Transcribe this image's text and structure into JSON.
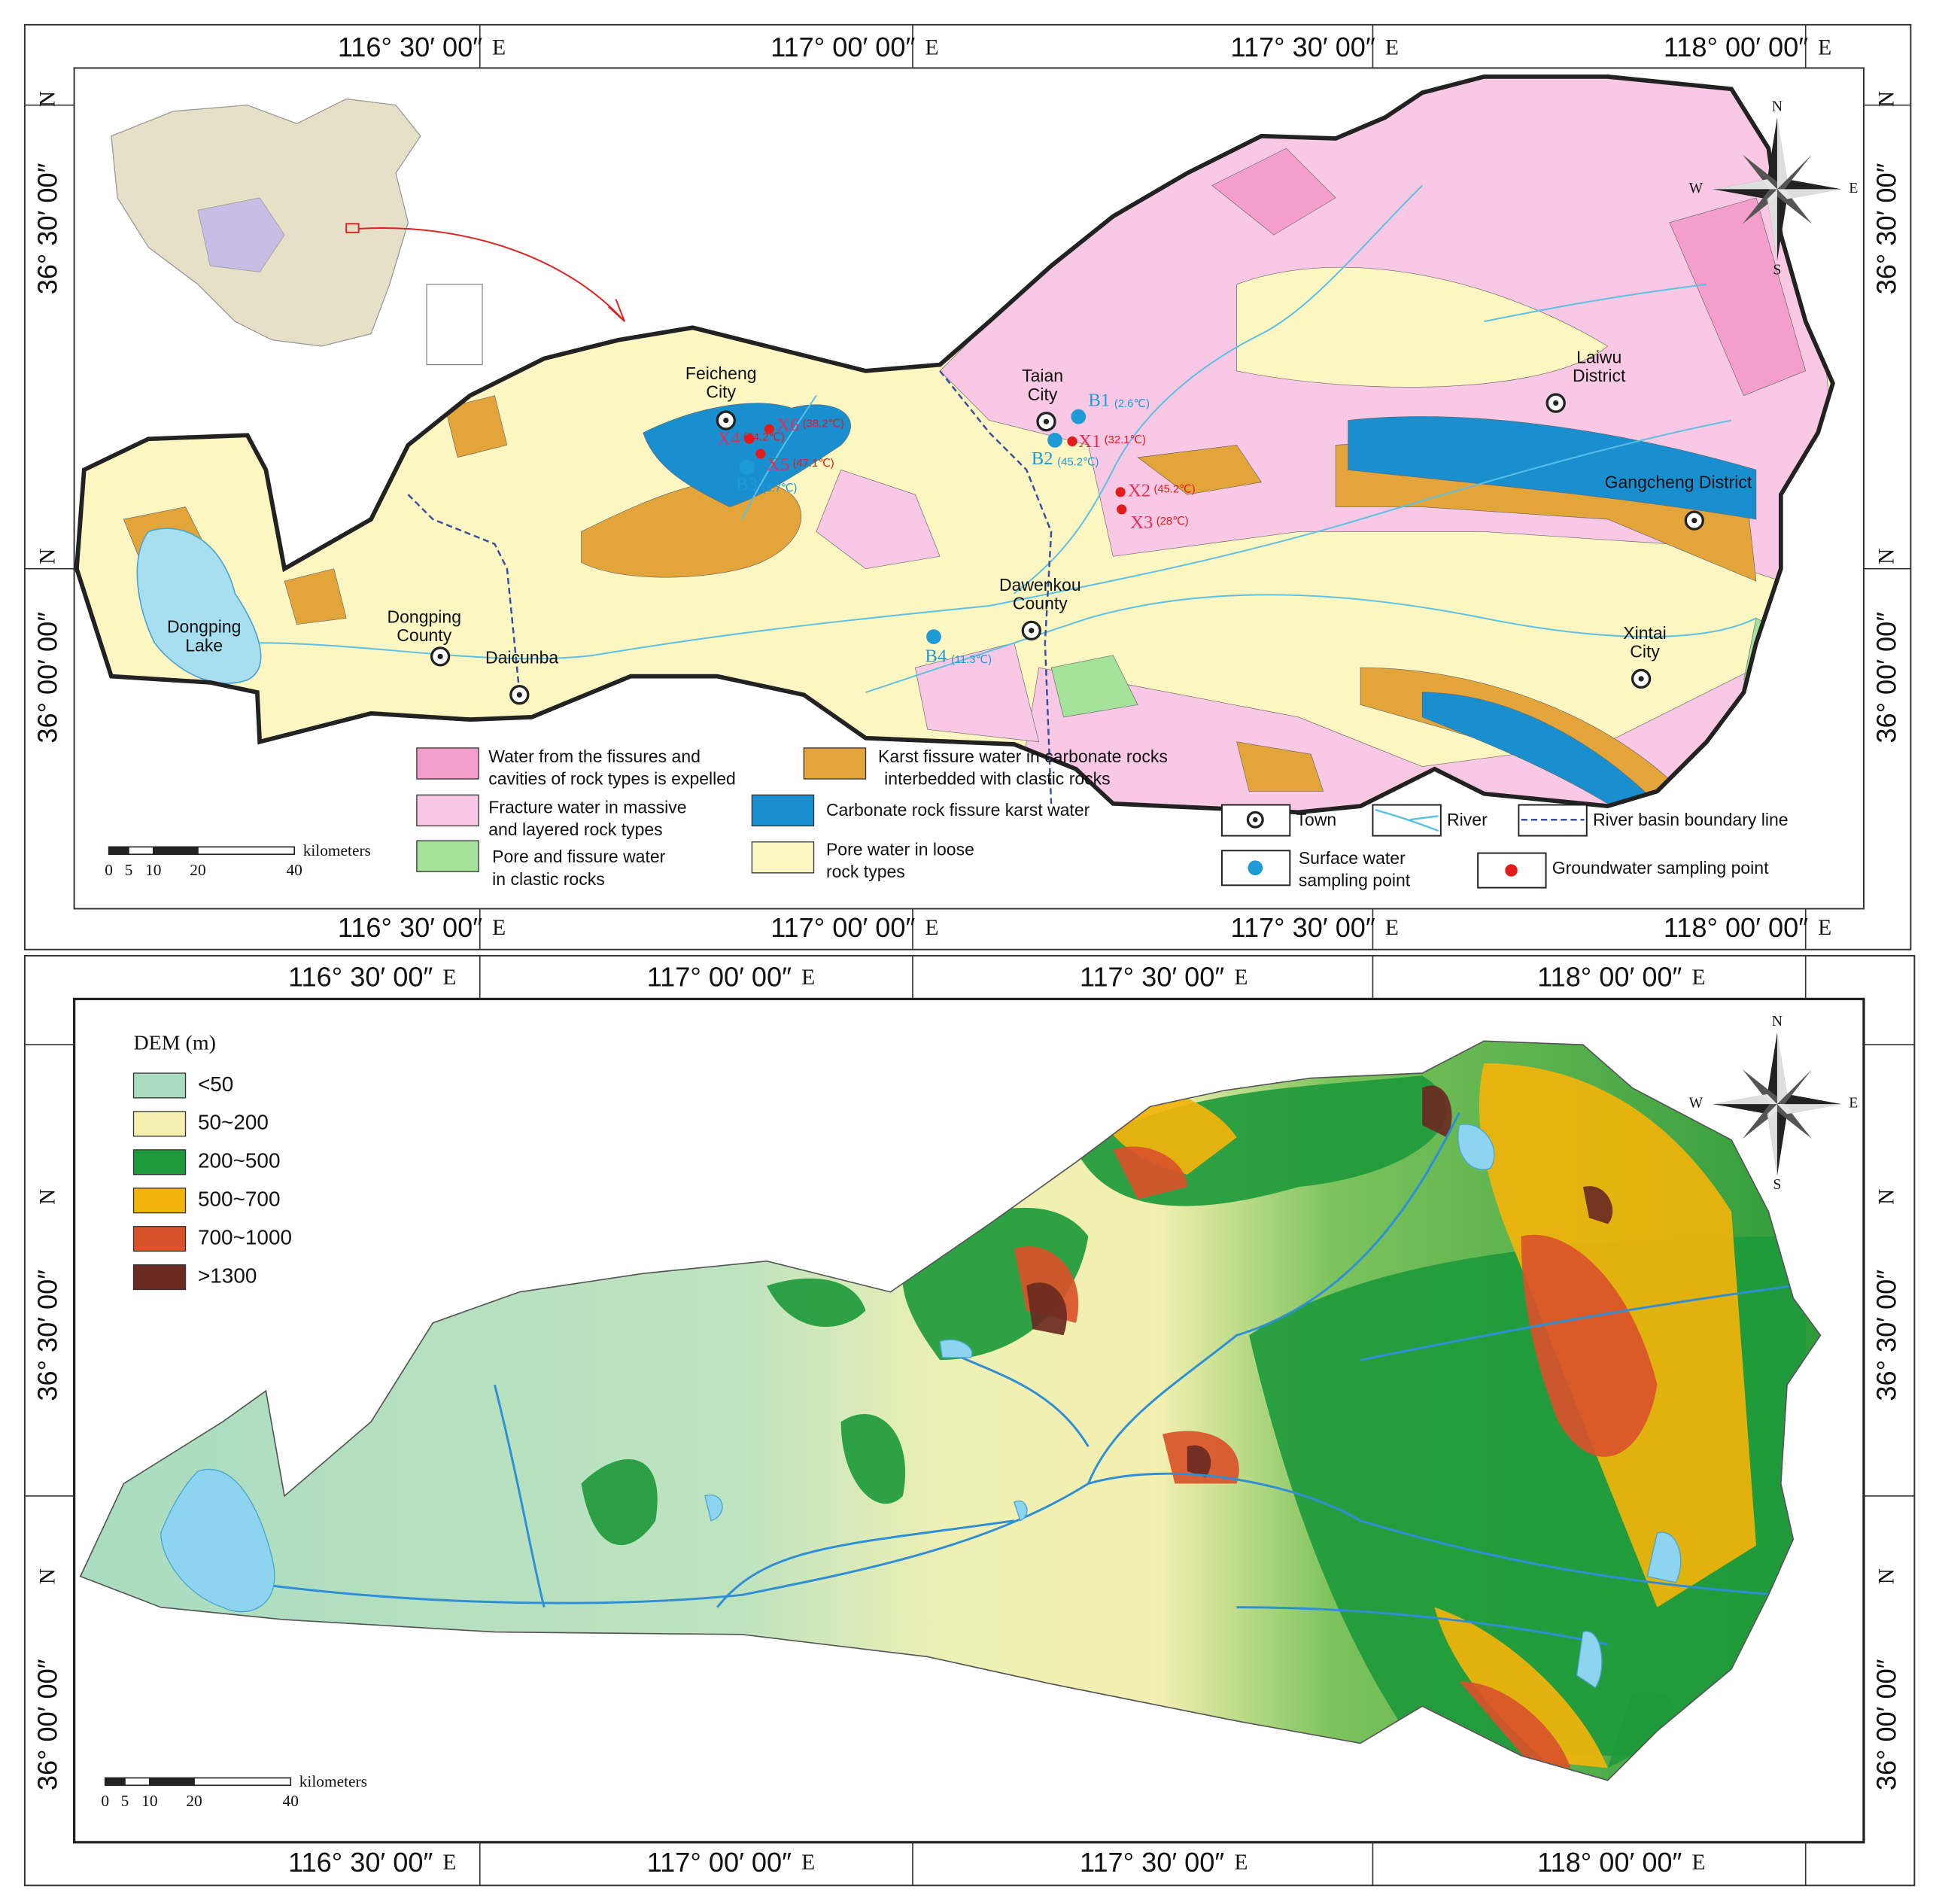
{
  "top_map": {
    "longitude_labels": [
      "116° 30′ 00″",
      "117° 00′ 00″",
      "117° 30′ 00″",
      "118° 00′ 00″"
    ],
    "longitude_suffix": "E",
    "latitude_labels": [
      "36° 30′ 00″",
      "36° 00′ 00″"
    ],
    "latitude_suffix": "N",
    "compass": {
      "n": "N",
      "s": "S",
      "e": "E",
      "w": "W"
    },
    "places": [
      [
        "Feicheng",
        "City"
      ],
      [
        "Taian",
        "City"
      ],
      [
        "Laiwu",
        "District"
      ],
      [
        "Gangcheng District"
      ],
      [
        "Dawenkou",
        "County"
      ],
      [
        "Xintai",
        "City"
      ],
      [
        "Dongping",
        "County"
      ],
      [
        "Daicunba"
      ],
      [
        "Dongping",
        "Lake"
      ]
    ],
    "surface_samples": [
      {
        "id": "B1",
        "temp": "(2.6℃)"
      },
      {
        "id": "B2",
        "temp": "(45.2℃)"
      },
      {
        "id": "B3",
        "temp": "(8.7℃)"
      },
      {
        "id": "B4",
        "temp": "(11.3℃)"
      }
    ],
    "groundwater_samples": [
      {
        "id": "X1",
        "temp": "(32.1℃)"
      },
      {
        "id": "X2",
        "temp": "(45.2℃)"
      },
      {
        "id": "X3",
        "temp": "(28℃)"
      },
      {
        "id": "X4",
        "temp": "(54.2℃)"
      },
      {
        "id": "X5",
        "temp": "(47.1℃)"
      },
      {
        "id": "X6",
        "temp": "(38.2℃)"
      }
    ],
    "legend": [
      {
        "lines": [
          "Water from the fissures and",
          "cavities of rock types is expelled"
        ],
        "color": "#f49fcb"
      },
      {
        "lines": [
          "Fracture water in massive",
          "and layered rock types"
        ],
        "color": "#f9c8e4"
      },
      {
        "lines": [
          "Pore and fissure water",
          "in clastic rocks"
        ],
        "color": "#a6e39a"
      },
      {
        "lines": [
          "Karst fissure water in carbonate rocks",
          "interbedded with clastic rocks"
        ],
        "color": "#e3a43a"
      },
      {
        "lines": [
          "Carbonate rock fissure karst water"
        ],
        "color": "#1a8fd0"
      },
      {
        "lines": [
          "Pore water in loose",
          "rock types"
        ],
        "color": "#fbf6c2"
      }
    ],
    "symbols": {
      "town": "Town",
      "river": "River",
      "boundary": "River basin boundary line",
      "surface_point": [
        "Surface water",
        "sampling point"
      ],
      "groundwater_point": "Groundwater sampling point"
    },
    "scale": {
      "ticks": [
        "0",
        "5",
        "10",
        "20",
        "40"
      ],
      "unit": "kilometers"
    }
  },
  "bottom_map": {
    "longitude_labels": [
      "116° 30′ 00″",
      "117° 00′ 00″",
      "117° 30′ 00″",
      "118° 00′ 00″"
    ],
    "longitude_suffix": "E",
    "latitude_labels": [
      "36° 30′ 00″",
      "36° 00′ 00″"
    ],
    "latitude_suffix": "N",
    "compass": {
      "n": "N",
      "s": "S",
      "e": "E",
      "w": "W"
    },
    "legend_title": "DEM (m)",
    "legend": [
      {
        "label": "<50",
        "color": "#a9dcc0"
      },
      {
        "label": "50~200",
        "color": "#f3f0b0"
      },
      {
        "label": "200~500",
        "color": "#1e9a3c"
      },
      {
        "label": "500~700",
        "color": "#f2b30a"
      },
      {
        "label": "700~1000",
        "color": "#d9532a"
      },
      {
        "label": ">1300",
        "color": "#6b2a22"
      }
    ],
    "scale": {
      "ticks": [
        "0",
        "5",
        "10",
        "20",
        "40"
      ],
      "unit": "kilometers"
    }
  }
}
